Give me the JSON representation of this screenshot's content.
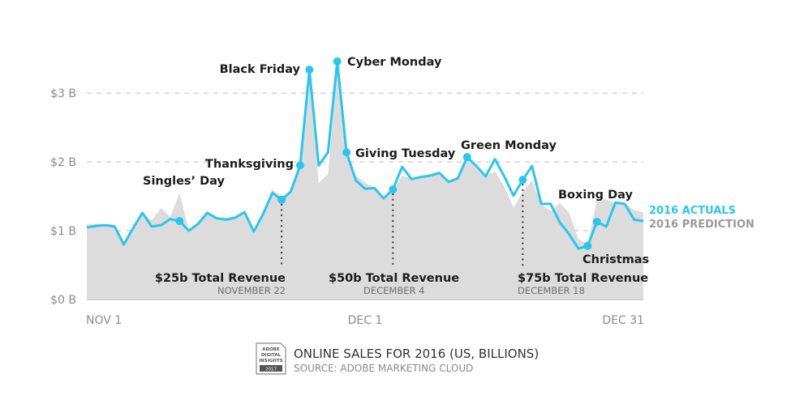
{
  "chart_data": {
    "type": "area+line",
    "title": "ONLINE SALES FOR 2016 (US, BILLIONS)",
    "source": "SOURCE: ADOBE MARKETING CLOUD",
    "x_start": "2016-11-01",
    "x_end": "2016-12-31",
    "x_tick_labels": [
      "NOV 1",
      "DEC 1",
      "DEC 31"
    ],
    "y_tick_labels": [
      "$0 B",
      "$1 B",
      "$2 B",
      "$3 B"
    ],
    "y_ticks": [
      0,
      1,
      2,
      3
    ],
    "ylim": [
      0,
      3.5
    ],
    "grid": "dashed horizontal",
    "legend_placement": "right",
    "series": [
      {
        "name": "2016 ACTUALS",
        "color": "#2cc5ee",
        "style": "line",
        "values": [
          1.05,
          1.07,
          1.08,
          1.06,
          0.8,
          1.04,
          1.26,
          1.06,
          1.08,
          1.17,
          1.14,
          1.0,
          1.1,
          1.26,
          1.18,
          1.16,
          1.19,
          1.27,
          0.99,
          1.24,
          1.55,
          1.45,
          1.57,
          1.95,
          3.34,
          1.95,
          2.14,
          3.46,
          2.14,
          1.73,
          1.61,
          1.62,
          1.47,
          1.6,
          1.93,
          1.75,
          1.78,
          1.8,
          1.84,
          1.71,
          1.76,
          2.07,
          1.94,
          1.79,
          2.04,
          1.79,
          1.51,
          1.74,
          1.94,
          1.39,
          1.39,
          1.12,
          0.95,
          0.74,
          0.78,
          1.13,
          1.06,
          1.41,
          1.39,
          1.16,
          1.14
        ]
      },
      {
        "name": "2016 PREDICTION",
        "color": "#dcdcdc",
        "style": "area",
        "values": [
          1.09,
          1.1,
          1.1,
          1.09,
          0.82,
          1.05,
          1.25,
          1.15,
          1.33,
          1.2,
          1.55,
          1.0,
          1.12,
          1.25,
          1.2,
          1.19,
          1.2,
          1.26,
          1.0,
          1.25,
          1.6,
          1.5,
          1.55,
          1.9,
          3.3,
          1.69,
          1.82,
          3.4,
          2.14,
          1.8,
          1.7,
          1.62,
          1.5,
          1.58,
          1.8,
          1.76,
          1.78,
          1.8,
          1.82,
          1.72,
          1.76,
          2.07,
          1.92,
          1.8,
          1.86,
          1.65,
          1.33,
          1.57,
          1.73,
          1.38,
          1.29,
          1.4,
          1.26,
          0.88,
          0.8,
          1.47,
          1.45,
          1.4,
          1.4,
          1.3,
          1.27
        ]
      }
    ],
    "annotations": [
      {
        "label": "Singles’ Day",
        "day": 10
      },
      {
        "label": "Thanksgiving",
        "day": 23
      },
      {
        "label": "Black Friday",
        "day": 24
      },
      {
        "label": "Cyber Monday",
        "day": 27
      },
      {
        "label": "Giving Tuesday",
        "day": 28
      },
      {
        "label": "Green Monday",
        "day": 41
      },
      {
        "label": "Christmas",
        "day": 54
      },
      {
        "label": "Boxing Day",
        "day": 55
      }
    ],
    "milestones": [
      {
        "label": "$25b Total Revenue",
        "date": "NOVEMBER 22",
        "day": 21
      },
      {
        "label": "$50b Total Revenue",
        "date": "DECEMBER 4",
        "day": 33
      },
      {
        "label": "$75b Total Revenue",
        "date": "DECEMBER 18",
        "day": 47
      }
    ]
  },
  "badge": {
    "line1": "ADOBE",
    "line2": "DIGITAL",
    "line3": "INSIGHTS",
    "year": "2017"
  }
}
